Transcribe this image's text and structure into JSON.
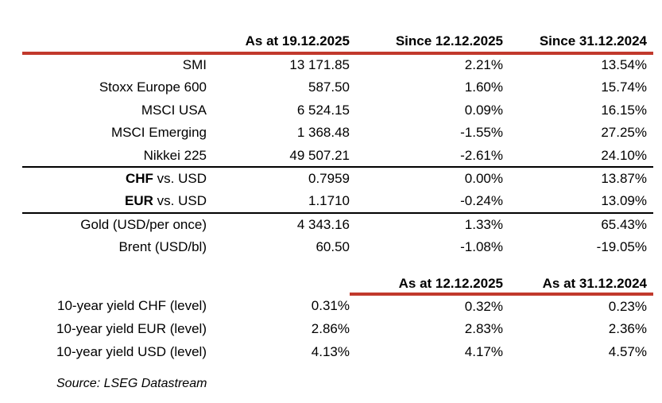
{
  "colors": {
    "accent_red": "#C1392C",
    "separator_black": "#000000",
    "text": "#000000",
    "background": "#FFFFFF"
  },
  "table_main": {
    "col_headers": {
      "level": "As at 19.12.2025",
      "since_week": "Since 12.12.2025",
      "since_ytd": "Since 31.12.2024"
    },
    "rows": [
      {
        "label_bold": "",
        "label": "SMI",
        "level": "13 171.85",
        "since_week": "2.21%",
        "since_ytd": "13.54%"
      },
      {
        "label_bold": "",
        "label": "Stoxx Europe 600",
        "level": "587.50",
        "since_week": "1.60%",
        "since_ytd": "15.74%"
      },
      {
        "label_bold": "",
        "label": "MSCI USA",
        "level": "6 524.15",
        "since_week": "0.09%",
        "since_ytd": "16.15%"
      },
      {
        "label_bold": "",
        "label": "MSCI Emerging",
        "level": "1 368.48",
        "since_week": "-1.55%",
        "since_ytd": "27.25%"
      },
      {
        "label_bold": "",
        "label": "Nikkei 225",
        "level": "49 507.21",
        "since_week": "-2.61%",
        "since_ytd": "24.10%"
      },
      {
        "label_bold": "CHF",
        "label": " vs. USD",
        "level": "0.7959",
        "since_week": "0.00%",
        "since_ytd": "13.87%"
      },
      {
        "label_bold": "EUR",
        "label": " vs. USD",
        "level": "1.1710",
        "since_week": "-0.24%",
        "since_ytd": "13.09%"
      },
      {
        "label_bold": "",
        "label": "Gold (USD/per once)",
        "level": "4 343.16",
        "since_week": "1.33%",
        "since_ytd": "65.43%"
      },
      {
        "label_bold": "",
        "label": "Brent (USD/bl)",
        "level": "60.50",
        "since_week": "-1.08%",
        "since_ytd": "-19.05%"
      }
    ]
  },
  "table_yields": {
    "col_headers": {
      "prev": "As at 12.12.2025",
      "ytd": "As at 31.12.2024"
    },
    "rows": [
      {
        "label": "10-year yield CHF (level)",
        "level": "0.31%",
        "prev": "0.32%",
        "ytd": "0.23%"
      },
      {
        "label": "10-year yield EUR (level)",
        "level": "2.86%",
        "prev": "2.83%",
        "ytd": "2.36%"
      },
      {
        "label": "10-year yield USD (level)",
        "level": "4.13%",
        "prev": "4.17%",
        "ytd": "4.57%"
      }
    ]
  },
  "source_note": "Source: LSEG Datastream"
}
